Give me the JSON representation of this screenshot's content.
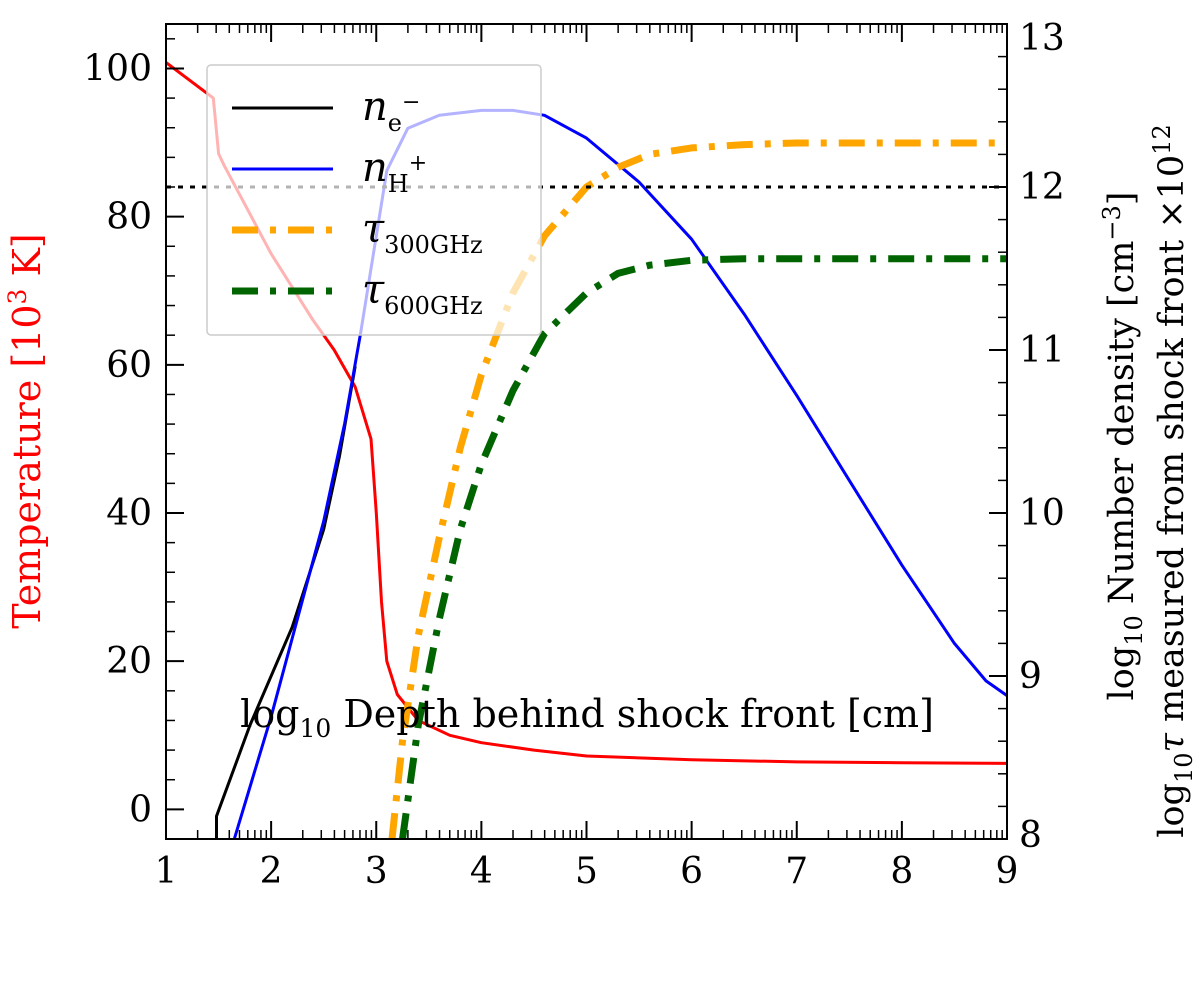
{
  "chart_data": {
    "type": "line",
    "xlabel_main": "log",
    "xlabel_sub": "10",
    "xlabel_rest": " Depth behind shock front [cm]",
    "x_ticks": [
      "1",
      "2",
      "3",
      "4",
      "5",
      "6",
      "7",
      "8",
      "9"
    ],
    "xlim": [
      1,
      9
    ],
    "left_axis": {
      "label_main": "Temperature [10",
      "label_sup": "3",
      "label_end": " K]",
      "color": "#ff0000",
      "ticks": [
        "0",
        "20",
        "40",
        "60",
        "80",
        "100"
      ],
      "ylim": [
        -4,
        106
      ]
    },
    "right_axis": {
      "label_line1_main": "log",
      "label_line1_sub": "10",
      "label_line1_rest": " Number density [cm",
      "label_line1_sup": "−3",
      "label_line1_end": "]",
      "label_line2_main": "log",
      "label_line2_sub": "10",
      "label_line2_tau": "τ",
      "label_line2_rest": " measured from shock front ×10",
      "label_line2_sup": "12",
      "ticks": [
        "8",
        "9",
        "10",
        "11",
        "12",
        "13"
      ],
      "ylim": [
        8,
        13
      ]
    },
    "reference_line": {
      "axis": "right",
      "y": 12.0,
      "style": "dotted",
      "color": "#000000"
    },
    "series": [
      {
        "name": "Temperature",
        "axis": "left",
        "color": "#ff0000",
        "style": "solid",
        "x": [
          1.0,
          1.45,
          1.5,
          1.55,
          2.0,
          2.4,
          2.6,
          2.8,
          2.95,
          3.0,
          3.05,
          3.1,
          3.2,
          3.4,
          3.7,
          4.0,
          4.5,
          5.0,
          6.0,
          7.0,
          8.0,
          9.0
        ],
        "y": [
          100.8,
          96.0,
          88.5,
          87.0,
          75.0,
          66.0,
          62.0,
          57.0,
          50.0,
          40.0,
          28.0,
          20.0,
          15.5,
          12.0,
          10.0,
          9.0,
          8.0,
          7.2,
          6.7,
          6.4,
          6.3,
          6.2
        ]
      },
      {
        "name": "n_e-",
        "legend_main": "n",
        "legend_sub": "e",
        "legend_sup": "−",
        "axis": "right",
        "color": "#000000",
        "style": "solid",
        "x": [
          1.48,
          1.48,
          1.8,
          2.2,
          2.5,
          2.65,
          2.8
        ],
        "y": [
          8.0,
          8.14,
          8.7,
          9.3,
          9.9,
          10.35,
          10.9
        ]
      },
      {
        "name": "n_H+",
        "legend_main": "n",
        "legend_sub": "H",
        "legend_sup": "+",
        "axis": "right",
        "color": "#0000ff",
        "style": "solid",
        "x": [
          1.65,
          2.0,
          2.5,
          2.7,
          2.85,
          3.0,
          3.1,
          3.3,
          3.6,
          4.0,
          4.3,
          4.6,
          5.0,
          5.5,
          6.0,
          6.5,
          7.0,
          7.5,
          8.0,
          8.5,
          8.8,
          9.0
        ],
        "y": [
          8.0,
          8.75,
          9.95,
          10.55,
          11.1,
          11.7,
          12.1,
          12.36,
          12.44,
          12.47,
          12.47,
          12.44,
          12.3,
          12.03,
          11.68,
          11.22,
          10.72,
          10.2,
          9.68,
          9.2,
          8.97,
          8.88
        ]
      },
      {
        "name": "tau_300GHz",
        "legend_main": "τ",
        "legend_sub": "300GHz",
        "axis": "right",
        "color": "#ffa500",
        "style": "dashdot",
        "x": [
          3.15,
          3.25,
          3.4,
          3.6,
          3.8,
          4.0,
          4.3,
          4.6,
          5.0,
          5.3,
          5.6,
          6.0,
          6.5,
          7.0,
          8.0,
          9.0
        ],
        "y": [
          8.0,
          8.6,
          9.25,
          9.85,
          10.4,
          10.85,
          11.35,
          11.7,
          12.0,
          12.12,
          12.2,
          12.24,
          12.26,
          12.27,
          12.27,
          12.27
        ]
      },
      {
        "name": "tau_600GHz",
        "legend_main": "τ",
        "legend_sub": "600GHz",
        "axis": "right",
        "color": "#006400",
        "style": "dashdot",
        "x": [
          3.25,
          3.4,
          3.6,
          3.8,
          4.0,
          4.3,
          4.6,
          5.0,
          5.3,
          5.6,
          6.0,
          6.5,
          7.0,
          8.0,
          9.0
        ],
        "y": [
          8.0,
          8.7,
          9.35,
          9.9,
          10.3,
          10.75,
          11.1,
          11.35,
          11.47,
          11.52,
          11.55,
          11.56,
          11.56,
          11.56,
          11.56
        ]
      }
    ]
  }
}
